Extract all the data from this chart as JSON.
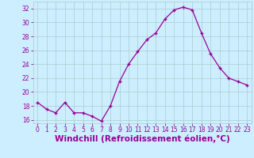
{
  "x": [
    0,
    1,
    2,
    3,
    4,
    5,
    6,
    7,
    8,
    9,
    10,
    11,
    12,
    13,
    14,
    15,
    16,
    17,
    18,
    19,
    20,
    21,
    22,
    23
  ],
  "y": [
    18.5,
    17.5,
    17.0,
    18.5,
    17.0,
    17.0,
    16.5,
    15.8,
    18.0,
    21.5,
    24.0,
    25.8,
    27.5,
    28.5,
    30.5,
    31.8,
    32.2,
    31.8,
    28.5,
    25.5,
    23.5,
    22.0,
    21.5,
    21.0
  ],
  "line_color": "#990099",
  "marker": "+",
  "bg_color": "#cceeff",
  "grid_color": "#aacccc",
  "xlabel": "Windchill (Refroidissement éolien,°C)",
  "xlabel_color": "#990099",
  "ylim": [
    15.5,
    33.0
  ],
  "xlim": [
    -0.5,
    23.5
  ],
  "yticks": [
    16,
    18,
    20,
    22,
    24,
    26,
    28,
    30,
    32
  ],
  "xticks": [
    0,
    1,
    2,
    3,
    4,
    5,
    6,
    7,
    8,
    9,
    10,
    11,
    12,
    13,
    14,
    15,
    16,
    17,
    18,
    19,
    20,
    21,
    22,
    23
  ],
  "tick_color": "#990099",
  "tick_label_fontsize": 5.5,
  "xlabel_fontsize": 7.5
}
